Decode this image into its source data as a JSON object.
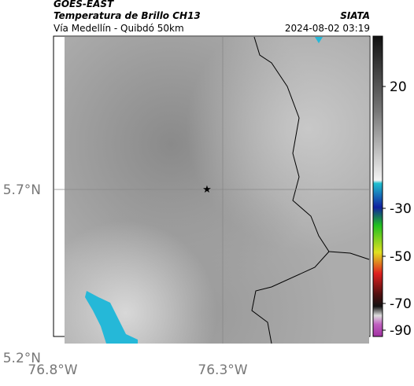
{
  "header": {
    "title": "GOES-EAST",
    "subtitle": "Temperatura de Brillo CH13",
    "source": "SIATA",
    "location": "Vía Medellín - Quibdó 50km",
    "timestamp": "2024-08-02 03:19"
  },
  "axes": {
    "y_labels": [
      "5.7°N",
      "5.2°N"
    ],
    "x_labels": [
      "76.8°W",
      "76.3°W"
    ]
  },
  "colorbar": {
    "ticks": [
      20,
      -30,
      -50,
      -70,
      -90
    ]
  }
}
